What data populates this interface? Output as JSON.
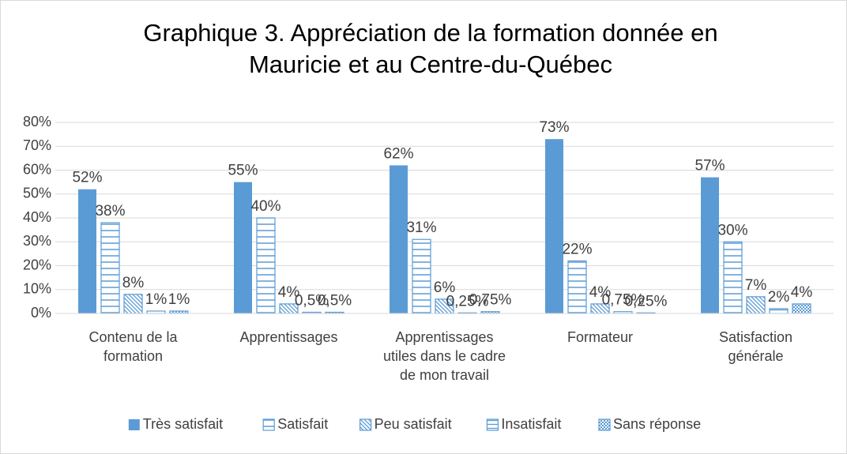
{
  "chart_data": {
    "type": "bar",
    "title": "Graphique 3. Appréciation de la formation donnée en Mauricie et au Centre-du-Québec",
    "categories": [
      "Contenu de la formation",
      "Apprentissages",
      "Apprentissages utiles dans le cadre de mon travail",
      "Formateur",
      "Satisfaction générale"
    ],
    "series": [
      {
        "name": "Très satisfait",
        "color": "#5b9bd5",
        "values": [
          52,
          55,
          62,
          73,
          57
        ],
        "value_labels": [
          "52%",
          "55%",
          "62%",
          "73%",
          "57%"
        ]
      },
      {
        "name": "Satisfait",
        "color": "#5b9bd5",
        "values": [
          38,
          40,
          31,
          22,
          30
        ],
        "value_labels": [
          "38%",
          "40%",
          "31%",
          "22%",
          "30%"
        ]
      },
      {
        "name": "Peu satisfait",
        "color": "#5b9bd5",
        "values": [
          8,
          4,
          6,
          4,
          7
        ],
        "value_labels": [
          "8%",
          "4%",
          "6%",
          "4%",
          "7%"
        ]
      },
      {
        "name": "Insatisfait",
        "color": "#5b9bd5",
        "values": [
          1,
          0.5,
          0.25,
          0.75,
          2
        ],
        "value_labels": [
          "1%",
          "0,5%",
          "0,25%",
          "0,75%",
          "2%"
        ]
      },
      {
        "name": "Sans réponse",
        "color": "#5b9bd5",
        "values": [
          1,
          0.5,
          0.75,
          0.25,
          4
        ],
        "value_labels": [
          "1%",
          "0,5%",
          "0,75%",
          "0,25%",
          "4%"
        ]
      }
    ],
    "ylim": [
      0,
      80
    ],
    "yticks": [
      {
        "value": 0,
        "label": "0%"
      },
      {
        "value": 10,
        "label": "10%"
      },
      {
        "value": 20,
        "label": "20%"
      },
      {
        "value": 30,
        "label": "30%"
      },
      {
        "value": 40,
        "label": "40%"
      },
      {
        "value": 50,
        "label": "50%"
      },
      {
        "value": 60,
        "label": "60%"
      },
      {
        "value": 70,
        "label": "70%"
      },
      {
        "value": 80,
        "label": "80%"
      }
    ],
    "grid": true,
    "legend": "bottom"
  }
}
